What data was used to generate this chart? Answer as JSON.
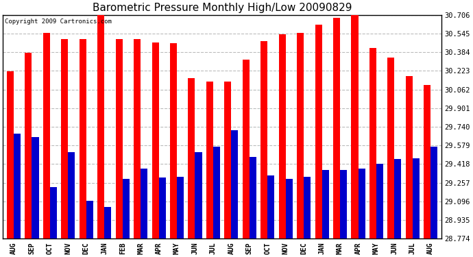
{
  "title": "Barometric Pressure Monthly High/Low 20090829",
  "copyright": "Copyright 2009 Cartronics.com",
  "months": [
    "AUG",
    "SEP",
    "OCT",
    "NOV",
    "DEC",
    "JAN",
    "FEB",
    "MAR",
    "APR",
    "MAY",
    "JUN",
    "JUL",
    "AUG",
    "SEP",
    "OCT",
    "NOV",
    "DEC",
    "JAN",
    "MAR",
    "APR",
    "MAY",
    "JUN",
    "JUL",
    "AUG"
  ],
  "highs": [
    30.22,
    30.38,
    30.55,
    30.5,
    30.5,
    30.72,
    30.5,
    30.5,
    30.47,
    30.46,
    30.16,
    30.13,
    30.13,
    30.32,
    30.48,
    30.54,
    30.55,
    30.62,
    30.68,
    30.71,
    30.42,
    30.34,
    30.18,
    30.1
  ],
  "lows": [
    29.68,
    29.65,
    29.22,
    29.52,
    29.1,
    29.05,
    29.29,
    29.38,
    29.3,
    29.31,
    29.52,
    29.57,
    29.71,
    29.48,
    29.32,
    29.29,
    29.31,
    29.37,
    29.37,
    29.38,
    29.42,
    29.46,
    29.47,
    29.57
  ],
  "yticks": [
    28.774,
    28.935,
    29.096,
    29.257,
    29.418,
    29.579,
    29.74,
    29.901,
    30.062,
    30.223,
    30.384,
    30.545,
    30.706
  ],
  "ymin": 28.774,
  "ymax": 30.706,
  "high_color": "#FF0000",
  "low_color": "#0000CC",
  "bg_color": "#FFFFFF",
  "grid_color": "#BBBBBB",
  "title_fontsize": 11,
  "bar_width": 0.38
}
